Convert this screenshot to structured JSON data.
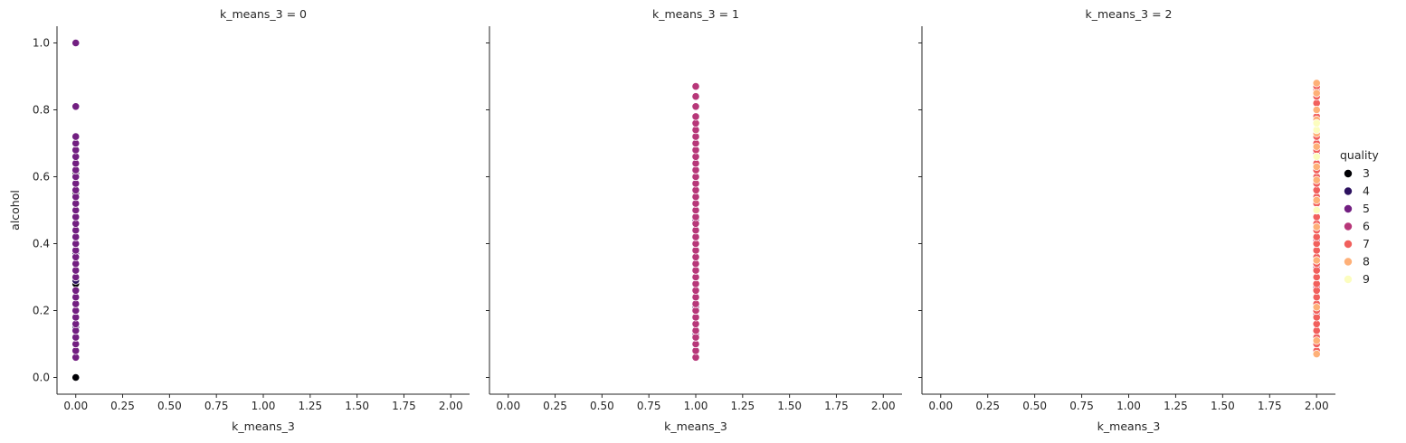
{
  "chart_data": {
    "type": "scatter",
    "facet_variable": "k_means_3",
    "xlabel": "k_means_3",
    "ylabel": "alcohol",
    "xlim": [
      -0.1,
      2.1
    ],
    "ylim": [
      -0.05,
      1.05
    ],
    "xticks": [
      "0.00",
      "0.25",
      "0.50",
      "0.75",
      "1.00",
      "1.25",
      "1.50",
      "1.75",
      "2.00"
    ],
    "yticks": [
      "0.0",
      "0.2",
      "0.4",
      "0.6",
      "0.8",
      "1.0"
    ],
    "legend": {
      "title": "quality",
      "placement": "right",
      "entries": [
        {
          "label": "3",
          "color": "#000004"
        },
        {
          "label": "4",
          "color": "#2c115f"
        },
        {
          "label": "5",
          "color": "#721f81"
        },
        {
          "label": "6",
          "color": "#b73779"
        },
        {
          "label": "7",
          "color": "#f1605d"
        },
        {
          "label": "8",
          "color": "#feb078"
        },
        {
          "label": "9",
          "color": "#fcfdbf"
        }
      ]
    },
    "facets": [
      {
        "title": "k_means_3 = 0",
        "x": 0,
        "series": [
          {
            "quality": "3",
            "y": [
              0.0,
              0.28,
              0.55,
              0.61
            ]
          },
          {
            "quality": "4",
            "y": [
              0.08,
              0.15,
              0.24,
              0.29,
              0.37,
              0.44,
              0.52,
              0.58,
              0.66
            ]
          },
          {
            "quality": "5",
            "y": [
              0.06,
              0.08,
              0.1,
              0.12,
              0.14,
              0.16,
              0.18,
              0.2,
              0.22,
              0.24,
              0.26,
              0.3,
              0.32,
              0.34,
              0.36,
              0.38,
              0.4,
              0.42,
              0.44,
              0.46,
              0.48,
              0.5,
              0.52,
              0.54,
              0.56,
              0.58,
              0.6,
              0.62,
              0.64,
              0.66,
              0.68,
              0.7,
              0.72,
              0.81,
              1.0
            ]
          }
        ]
      },
      {
        "title": "k_means_3 = 1",
        "x": 1,
        "series": [
          {
            "quality": "5",
            "y": [
              0.06,
              0.13,
              0.21,
              0.36,
              0.47,
              0.62
            ]
          },
          {
            "quality": "6",
            "y": [
              0.06,
              0.08,
              0.1,
              0.12,
              0.14,
              0.16,
              0.18,
              0.2,
              0.22,
              0.24,
              0.26,
              0.28,
              0.3,
              0.32,
              0.34,
              0.36,
              0.38,
              0.4,
              0.42,
              0.44,
              0.46,
              0.48,
              0.5,
              0.52,
              0.54,
              0.56,
              0.58,
              0.6,
              0.62,
              0.64,
              0.66,
              0.68,
              0.7,
              0.72,
              0.74,
              0.76,
              0.78,
              0.81,
              0.84,
              0.87
            ]
          }
        ]
      },
      {
        "title": "k_means_3 = 2",
        "x": 2,
        "series": [
          {
            "quality": "6",
            "y": [
              0.1,
              0.14,
              0.19,
              0.27,
              0.33,
              0.41,
              0.56,
              0.67,
              0.74
            ]
          },
          {
            "quality": "7",
            "y": [
              0.08,
              0.1,
              0.12,
              0.14,
              0.16,
              0.18,
              0.2,
              0.22,
              0.24,
              0.26,
              0.28,
              0.3,
              0.32,
              0.34,
              0.36,
              0.38,
              0.4,
              0.42,
              0.44,
              0.46,
              0.48,
              0.5,
              0.52,
              0.54,
              0.56,
              0.58,
              0.6,
              0.62,
              0.64,
              0.66,
              0.68,
              0.7,
              0.72,
              0.74,
              0.76,
              0.78,
              0.8,
              0.82,
              0.84,
              0.86,
              0.87
            ]
          },
          {
            "quality": "8",
            "y": [
              0.07,
              0.11,
              0.21,
              0.35,
              0.45,
              0.5,
              0.53,
              0.59,
              0.63,
              0.69,
              0.73,
              0.77,
              0.8,
              0.85,
              0.88
            ]
          },
          {
            "quality": "9",
            "y": [
              0.5,
              0.66,
              0.74,
              0.76
            ]
          }
        ]
      }
    ]
  }
}
